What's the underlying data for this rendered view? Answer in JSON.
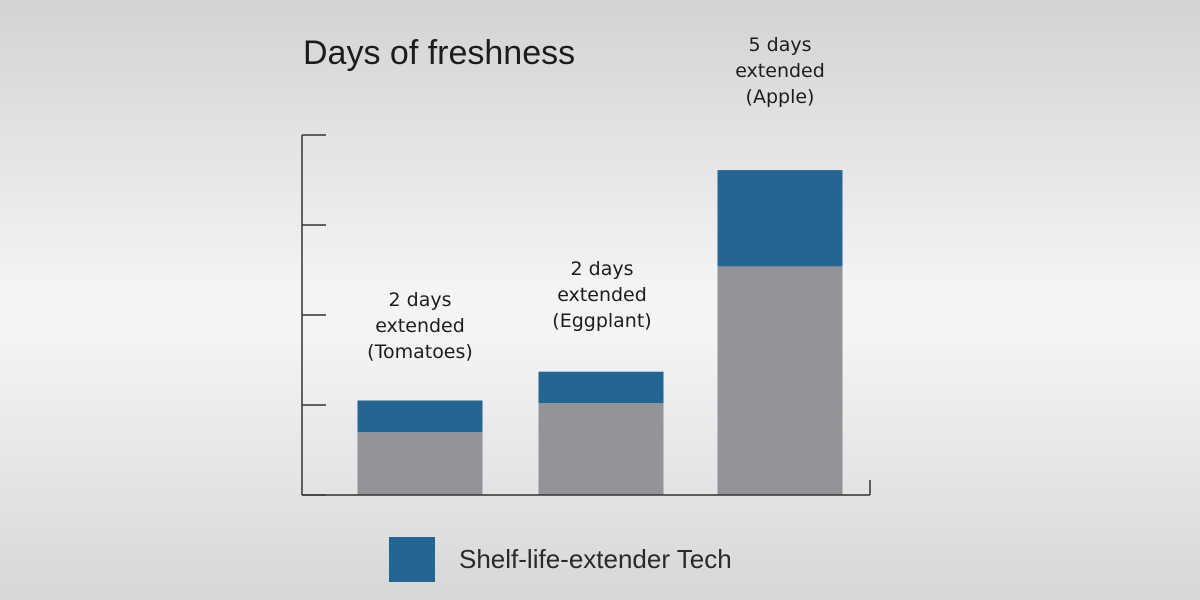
{
  "chart_data": {
    "type": "bar",
    "stacked": true,
    "title": "Days of freshness",
    "xlabel": "",
    "ylabel": "",
    "ylim": [
      0,
      4
    ],
    "y_tick_count": 5,
    "y_tick_labels_shown": false,
    "grid": false,
    "categories": [
      "Tomatoes",
      "Eggplant",
      "Apple"
    ],
    "series": [
      {
        "values": [
          0.7,
          1.02,
          2.54
        ],
        "color": "#939497"
      },
      {
        "name": "Shelf-life-extender Tech",
        "values": [
          0.35,
          0.35,
          1.07
        ],
        "color": "#256591"
      }
    ],
    "annotations": [
      {
        "lines": [
          "2 days",
          "extended",
          "(Tomatoes)"
        ]
      },
      {
        "lines": [
          "2 days",
          "extended",
          "(Eggplant)"
        ]
      },
      {
        "lines": [
          "5 days",
          "extended",
          "(Apple)"
        ]
      }
    ],
    "legend": {
      "position": "bottom-center",
      "entries": [
        {
          "label": "Shelf-life-extender Tech",
          "color": "#256591"
        }
      ]
    },
    "colors": {
      "axis": "#333333",
      "base": "#939497",
      "extension": "#256591"
    }
  }
}
